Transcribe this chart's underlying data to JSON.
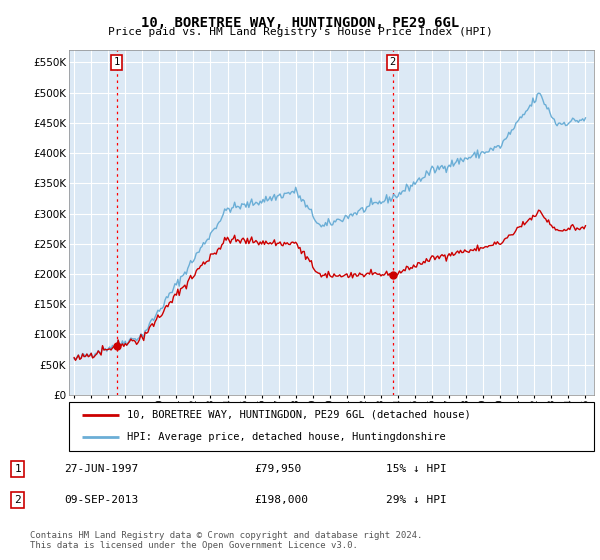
{
  "title": "10, BORETREE WAY, HUNTINGDON, PE29 6GL",
  "subtitle": "Price paid vs. HM Land Registry's House Price Index (HPI)",
  "bg_color": "#dce9f5",
  "plot_bg_color": "#dce9f5",
  "grid_color": "#ffffff",
  "ylim": [
    0,
    570000
  ],
  "yticks": [
    0,
    50000,
    100000,
    150000,
    200000,
    250000,
    300000,
    350000,
    400000,
    450000,
    500000,
    550000
  ],
  "ytick_labels": [
    "£0",
    "£50K",
    "£100K",
    "£150K",
    "£200K",
    "£250K",
    "£300K",
    "£350K",
    "£400K",
    "£450K",
    "£500K",
    "£550K"
  ],
  "hpi_color": "#6baed6",
  "price_color": "#cc0000",
  "sale1_date": 1997.49,
  "sale1_price": 79950,
  "sale2_date": 2013.69,
  "sale2_price": 198000,
  "legend_line1": "10, BORETREE WAY, HUNTINGDON, PE29 6GL (detached house)",
  "legend_line2": "HPI: Average price, detached house, Huntingdonshire",
  "table_row1_label": "1",
  "table_row1_date": "27-JUN-1997",
  "table_row1_price": "£79,950",
  "table_row1_note": "15% ↓ HPI",
  "table_row2_label": "2",
  "table_row2_date": "09-SEP-2013",
  "table_row2_price": "£198,000",
  "table_row2_note": "29% ↓ HPI",
  "footer": "Contains HM Land Registry data © Crown copyright and database right 2024.\nThis data is licensed under the Open Government Licence v3.0."
}
